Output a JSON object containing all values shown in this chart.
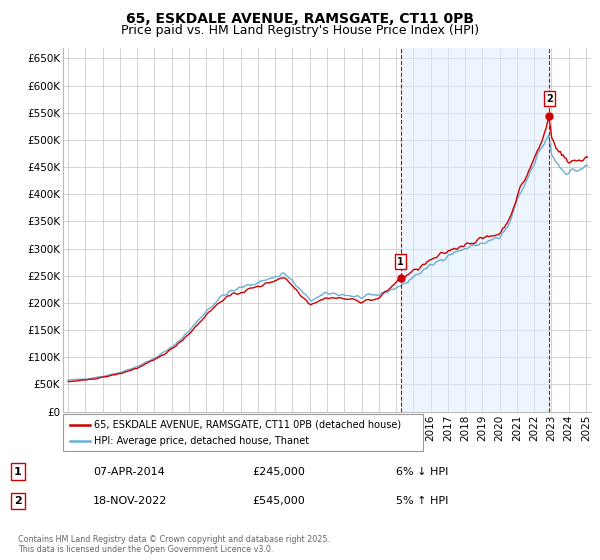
{
  "title": "65, ESKDALE AVENUE, RAMSGATE, CT11 0PB",
  "subtitle": "Price paid vs. HM Land Registry's House Price Index (HPI)",
  "ylabel_ticks": [
    "£0",
    "£50K",
    "£100K",
    "£150K",
    "£200K",
    "£250K",
    "£300K",
    "£350K",
    "£400K",
    "£450K",
    "£500K",
    "£550K",
    "£600K",
    "£650K"
  ],
  "ytick_values": [
    0,
    50000,
    100000,
    150000,
    200000,
    250000,
    300000,
    350000,
    400000,
    450000,
    500000,
    550000,
    600000,
    650000
  ],
  "ylim": [
    0,
    670000
  ],
  "xlim_start": 1994.7,
  "xlim_end": 2025.3,
  "marker1_x": 2014.27,
  "marker1_y": 245000,
  "marker2_x": 2022.88,
  "marker2_y": 545000,
  "vline1_x": 2014.27,
  "vline2_x": 2022.88,
  "legend_entry1": "65, ESKDALE AVENUE, RAMSGATE, CT11 0PB (detached house)",
  "legend_entry2": "HPI: Average price, detached house, Thanet",
  "table_row1_num": "1",
  "table_row1_date": "07-APR-2014",
  "table_row1_price": "£245,000",
  "table_row1_hpi": "6% ↓ HPI",
  "table_row2_num": "2",
  "table_row2_date": "18-NOV-2022",
  "table_row2_price": "£545,000",
  "table_row2_hpi": "5% ↑ HPI",
  "footer": "Contains HM Land Registry data © Crown copyright and database right 2025.\nThis data is licensed under the Open Government Licence v3.0.",
  "line_color_hpi": "#6baed6",
  "line_color_price": "#cc0000",
  "vline_color": "#cc0000",
  "shade_color": "#ddeeff",
  "background_color": "#ffffff",
  "grid_color": "#cccccc",
  "title_fontsize": 10,
  "subtitle_fontsize": 9,
  "axis_fontsize": 7.5
}
